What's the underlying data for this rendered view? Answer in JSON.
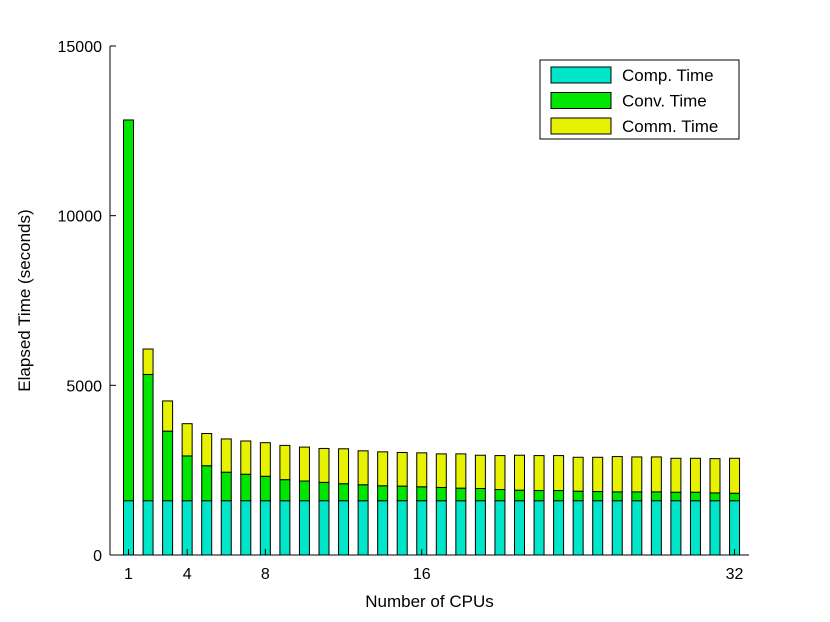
{
  "chart_data": {
    "type": "bar",
    "stacked": true,
    "x": [
      1,
      2,
      3,
      4,
      5,
      6,
      7,
      8,
      9,
      10,
      11,
      12,
      13,
      14,
      15,
      16,
      17,
      18,
      19,
      20,
      21,
      22,
      23,
      24,
      25,
      26,
      27,
      28,
      29,
      30,
      31,
      32
    ],
    "xticks": [
      1,
      4,
      8,
      16,
      32
    ],
    "xlabel": "Number of CPUs",
    "ylabel": "Elapsed Time (seconds)",
    "ylim": [
      0,
      15000
    ],
    "yticks": [
      0,
      5000,
      10000,
      15000
    ],
    "legend_position": "top-right",
    "grid": false,
    "series": [
      {
        "name": "Comp. Time",
        "color": "#00e6c8",
        "values": [
          1600,
          1600,
          1600,
          1600,
          1600,
          1600,
          1600,
          1600,
          1600,
          1600,
          1600,
          1600,
          1600,
          1600,
          1600,
          1600,
          1600,
          1600,
          1600,
          1600,
          1600,
          1600,
          1600,
          1600,
          1600,
          1600,
          1600,
          1600,
          1600,
          1600,
          1600,
          1600
        ]
      },
      {
        "name": "Conv. Time",
        "color": "#00e600",
        "values": [
          11220,
          3720,
          2050,
          1320,
          1030,
          840,
          780,
          720,
          620,
          580,
          540,
          500,
          470,
          440,
          430,
          410,
          390,
          370,
          360,
          330,
          310,
          300,
          300,
          280,
          270,
          260,
          260,
          260,
          250,
          250,
          230,
          220
        ]
      },
      {
        "name": "Comm. Time",
        "color": "#e6f200",
        "values": [
          0,
          750,
          890,
          950,
          950,
          980,
          980,
          990,
          1010,
          1000,
          1000,
          1030,
          1000,
          1000,
          990,
          1000,
          990,
          1010,
          980,
          1000,
          1030,
          1030,
          1030,
          1000,
          1010,
          1040,
          1030,
          1030,
          1000,
          1000,
          1010,
          1030
        ]
      }
    ]
  }
}
